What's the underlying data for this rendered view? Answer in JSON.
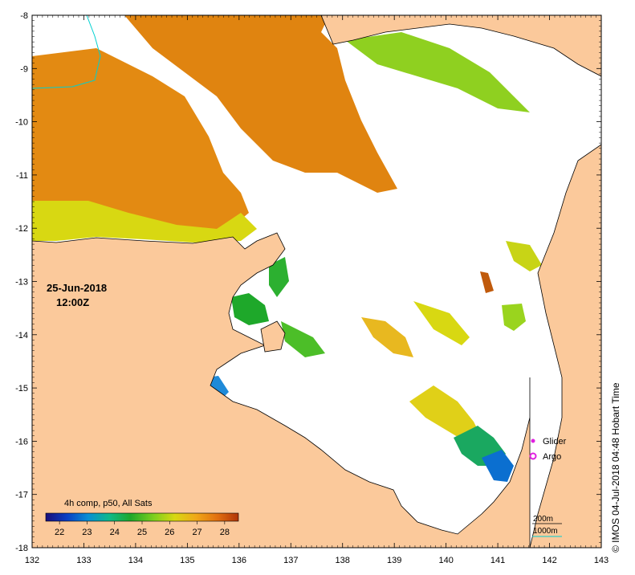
{
  "map": {
    "lon_ticks": [
      "132",
      "133",
      "134",
      "135",
      "136",
      "137",
      "138",
      "139",
      "140",
      "141",
      "142",
      "143"
    ],
    "lat_ticks": [
      "-8",
      "-9",
      "-10",
      "-11",
      "-12",
      "-13",
      "-14",
      "-15",
      "-16",
      "-17",
      "-18"
    ],
    "lon_range": [
      132,
      143
    ],
    "lat_range": [
      -8,
      -18
    ]
  },
  "date_text": "25-Jun-2018",
  "time_text": "12:00Z",
  "colorbar": {
    "title": "4h comp, p50, All Sats",
    "labels": [
      "22",
      "23",
      "24",
      "25",
      "26",
      "27",
      "28"
    ],
    "range": [
      21.5,
      28.5
    ],
    "colors": [
      "#1a0e7a",
      "#0b3fc4",
      "#0a8fd4",
      "#10b98a",
      "#1ea82a",
      "#7dcf1e",
      "#d8d812",
      "#f0a818",
      "#e27010",
      "#b03408"
    ]
  },
  "legend": {
    "glider_label": "Glider",
    "argo_label": "Argo",
    "glider_color": "#e020e0",
    "argo_color": "#e020e0"
  },
  "contours": {
    "c200_label": "200m",
    "c1000_label": "1000m",
    "c1000_color": "#00d0d0"
  },
  "colors": {
    "land": "#fbc99b",
    "coast": "#000000",
    "sst_warm": "#e38a12",
    "sst_mid": "#f0b01a",
    "sst_yellow": "#d8d812",
    "sst_green": "#23a82a",
    "sst_blue": "#0b6fd0"
  },
  "copyright": "© IMOS 04-Jul-2018 04:48 Hobart Time"
}
